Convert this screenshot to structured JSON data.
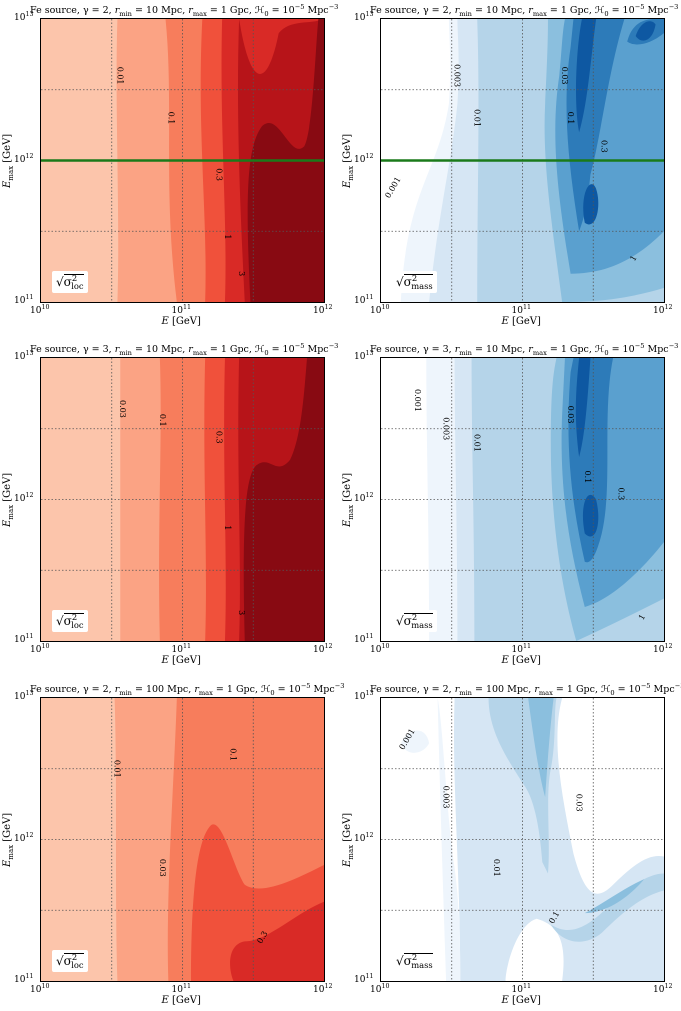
{
  "chart_data": [
    {
      "type": "heatmap",
      "title": "Fe source, γ = 2, r_min = 10 Mpc, r_max = 1 Gpc, ℋ0 = 10⁻⁵ Mpc⁻³",
      "xlabel": "E [GeV]",
      "ylabel": "E_max [GeV]",
      "x_ticks": [
        "10¹⁰",
        "10¹¹",
        "10¹²"
      ],
      "y_ticks": [
        "10¹¹",
        "10¹²",
        "10¹³"
      ],
      "legend": "√σ²_loc",
      "colormap": "reds",
      "contour_labels": [
        "0.01",
        "0.1",
        "0.3",
        "1",
        "3"
      ],
      "hline_y_log": 12,
      "hline_color": "#1a7a1a"
    },
    {
      "type": "heatmap",
      "title": "Fe source, γ = 2, r_min = 10 Mpc, r_max = 1 Gpc, ℋ0 = 10⁻⁵ Mpc⁻³",
      "xlabel": "E [GeV]",
      "ylabel": "E_max [GeV]",
      "x_ticks": [
        "10¹⁰",
        "10¹¹",
        "10¹²"
      ],
      "y_ticks": [
        "10¹¹",
        "10¹²",
        "10¹³"
      ],
      "legend": "√σ²_mass",
      "colormap": "blues",
      "contour_labels": [
        "0.001",
        "0.003",
        "0.01",
        "0.03",
        "0.1",
        "0.3",
        "1"
      ],
      "hline_y_log": 12,
      "hline_color": "#1a7a1a"
    },
    {
      "type": "heatmap",
      "title": "Fe source, γ = 3, r_min = 10 Mpc, r_max = 1 Gpc, ℋ0 = 10⁻⁵ Mpc⁻³",
      "xlabel": "E [GeV]",
      "ylabel": "E_max [GeV]",
      "x_ticks": [
        "10¹⁰",
        "10¹¹",
        "10¹²"
      ],
      "y_ticks": [
        "10¹¹",
        "10¹²",
        "10¹³"
      ],
      "legend": "√σ²_loc",
      "colormap": "reds",
      "contour_labels": [
        "0.03",
        "0.1",
        "0.3",
        "1",
        "3"
      ]
    },
    {
      "type": "heatmap",
      "title": "Fe source, γ = 3, r_min = 10 Mpc, r_max = 1 Gpc, ℋ0 = 10⁻⁵ Mpc⁻³",
      "xlabel": "E [GeV]",
      "ylabel": "E_max [GeV]",
      "x_ticks": [
        "10¹⁰",
        "10¹¹",
        "10¹²"
      ],
      "y_ticks": [
        "10¹¹",
        "10¹²",
        "10¹³"
      ],
      "legend": "√σ²_mass",
      "colormap": "blues",
      "contour_labels": [
        "0.001",
        "0.003",
        "0.01",
        "0.03",
        "0.1",
        "0.3",
        "1"
      ]
    },
    {
      "type": "heatmap",
      "title": "Fe source, γ = 2, r_min = 100 Mpc, r_max = 1 Gpc, ℋ0 = 10⁻⁵ Mpc⁻³",
      "xlabel": "E [GeV]",
      "ylabel": "E_max [GeV]",
      "x_ticks": [
        "10¹⁰",
        "10¹¹",
        "10¹²"
      ],
      "y_ticks": [
        "10¹¹",
        "10¹²",
        "10¹³"
      ],
      "legend": "√σ²_loc",
      "colormap": "reds",
      "contour_labels": [
        "0.01",
        "0.03",
        "0.1",
        "0.3"
      ]
    },
    {
      "type": "heatmap",
      "title": "Fe source, γ = 2, r_min = 100 Mpc, r_max = 1 Gpc, ℋ0 = 10⁻⁵ Mpc⁻³",
      "xlabel": "E [GeV]",
      "ylabel": "E_max [GeV]",
      "x_ticks": [
        "10¹⁰",
        "10¹¹",
        "10¹²"
      ],
      "y_ticks": [
        "10¹¹",
        "10¹²",
        "10¹³"
      ],
      "legend": "√σ²_mass",
      "colormap": "blues",
      "contour_labels": [
        "0.001",
        "0.003",
        "0.01",
        "0.03",
        "0.1"
      ]
    }
  ],
  "title_parts": [
    {
      "pre": "Fe source, ",
      "gamma": "γ = 2, ",
      "rmin": "10 Mpc",
      "rmax": "1 Gpc",
      "h": "10",
      "hexp": "−5",
      "unit": "Mpc",
      "uexp": "−3"
    },
    {
      "pre": "Fe source, ",
      "gamma": "γ = 2, ",
      "rmin": "10 Mpc",
      "rmax": "1 Gpc",
      "h": "10",
      "hexp": "−5",
      "unit": "Mpc",
      "uexp": "−3"
    },
    {
      "pre": "Fe source, ",
      "gamma": "γ = 3, ",
      "rmin": "10 Mpc",
      "rmax": "1 Gpc",
      "h": "10",
      "hexp": "−5",
      "unit": "Mpc",
      "uexp": "−3"
    },
    {
      "pre": "Fe source, ",
      "gamma": "γ = 3, ",
      "rmin": "10 Mpc",
      "rmax": "1 Gpc",
      "h": "10",
      "hexp": "−5",
      "unit": "Mpc",
      "uexp": "−3"
    },
    {
      "pre": "Fe source, ",
      "gamma": "γ = 2, ",
      "rmin": "100 Mpc",
      "rmax": "1 Gpc",
      "h": "10",
      "hexp": "−5",
      "unit": "Mpc",
      "uexp": "−3"
    },
    {
      "pre": "Fe source, ",
      "gamma": "γ = 2, ",
      "rmin": "100 Mpc",
      "rmax": "1 Gpc",
      "h": "10",
      "hexp": "−5",
      "unit": "Mpc",
      "uexp": "−3"
    }
  ],
  "tick_base": "10",
  "x_tick_exp": [
    "10",
    "11",
    "12"
  ],
  "y_tick_exp": [
    "11",
    "12",
    "13"
  ],
  "x_axis_label": "E",
  "x_axis_unit": " [GeV]",
  "y_axis_label": "E",
  "y_axis_sub": "max",
  "y_axis_unit": " [GeV]",
  "legend_loc": "σ",
  "legend_loc_sub": "loc",
  "legend_mass_sub": "mass",
  "colors": {
    "reds": [
      "#fcc5ab",
      "#fba384",
      "#f77d5c",
      "#f0513b",
      "#d92a26",
      "#b71419",
      "#880a12"
    ],
    "blues": [
      "#ffffff",
      "#eef5fc",
      "#d6e6f4",
      "#b5d4e9",
      "#8bbfde",
      "#5aa0cf",
      "#2d7bb9",
      "#0e58a2"
    ],
    "hline": "#1a7a1a"
  }
}
